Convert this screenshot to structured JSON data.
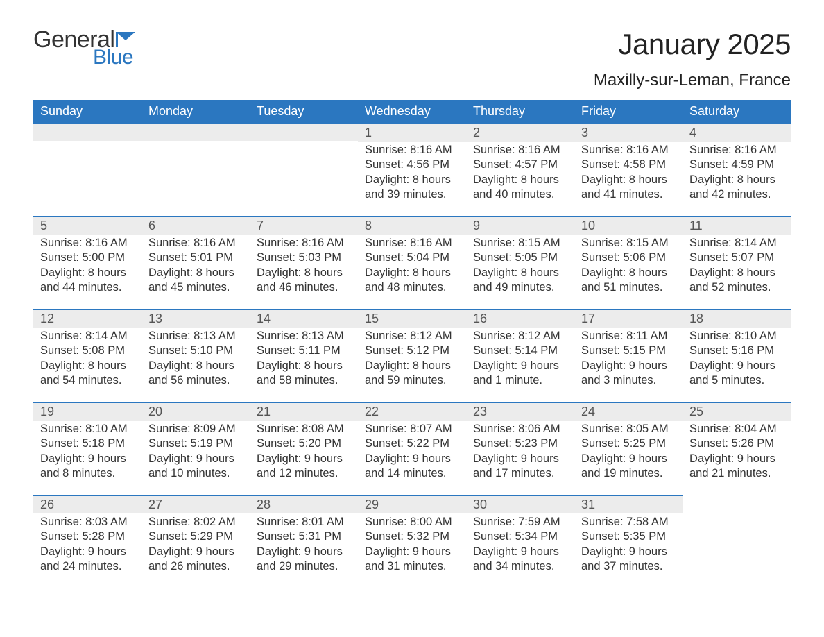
{
  "logo": {
    "text_general": "General",
    "text_blue": "Blue",
    "flag_color": "#2b77c0"
  },
  "header": {
    "month_title": "January 2025",
    "location": "Maxilly-sur-Leman, France"
  },
  "colors": {
    "header_bg": "#2b77c0",
    "header_text": "#ffffff",
    "daynum_bg": "#ececec",
    "daynum_border": "#2b77c0",
    "body_bg": "#ffffff",
    "text": "#333333"
  },
  "typography": {
    "title_fontsize": 42,
    "location_fontsize": 24,
    "header_cell_fontsize": 18,
    "daynum_fontsize": 18,
    "body_fontsize": 16.5,
    "font_family": "Arial"
  },
  "calendar": {
    "day_headers": [
      "Sunday",
      "Monday",
      "Tuesday",
      "Wednesday",
      "Thursday",
      "Friday",
      "Saturday"
    ],
    "weeks": [
      [
        null,
        null,
        null,
        {
          "num": "1",
          "sunrise": "Sunrise: 8:16 AM",
          "sunset": "Sunset: 4:56 PM",
          "daylight": "Daylight: 8 hours and 39 minutes."
        },
        {
          "num": "2",
          "sunrise": "Sunrise: 8:16 AM",
          "sunset": "Sunset: 4:57 PM",
          "daylight": "Daylight: 8 hours and 40 minutes."
        },
        {
          "num": "3",
          "sunrise": "Sunrise: 8:16 AM",
          "sunset": "Sunset: 4:58 PM",
          "daylight": "Daylight: 8 hours and 41 minutes."
        },
        {
          "num": "4",
          "sunrise": "Sunrise: 8:16 AM",
          "sunset": "Sunset: 4:59 PM",
          "daylight": "Daylight: 8 hours and 42 minutes."
        }
      ],
      [
        {
          "num": "5",
          "sunrise": "Sunrise: 8:16 AM",
          "sunset": "Sunset: 5:00 PM",
          "daylight": "Daylight: 8 hours and 44 minutes."
        },
        {
          "num": "6",
          "sunrise": "Sunrise: 8:16 AM",
          "sunset": "Sunset: 5:01 PM",
          "daylight": "Daylight: 8 hours and 45 minutes."
        },
        {
          "num": "7",
          "sunrise": "Sunrise: 8:16 AM",
          "sunset": "Sunset: 5:03 PM",
          "daylight": "Daylight: 8 hours and 46 minutes."
        },
        {
          "num": "8",
          "sunrise": "Sunrise: 8:16 AM",
          "sunset": "Sunset: 5:04 PM",
          "daylight": "Daylight: 8 hours and 48 minutes."
        },
        {
          "num": "9",
          "sunrise": "Sunrise: 8:15 AM",
          "sunset": "Sunset: 5:05 PM",
          "daylight": "Daylight: 8 hours and 49 minutes."
        },
        {
          "num": "10",
          "sunrise": "Sunrise: 8:15 AM",
          "sunset": "Sunset: 5:06 PM",
          "daylight": "Daylight: 8 hours and 51 minutes."
        },
        {
          "num": "11",
          "sunrise": "Sunrise: 8:14 AM",
          "sunset": "Sunset: 5:07 PM",
          "daylight": "Daylight: 8 hours and 52 minutes."
        }
      ],
      [
        {
          "num": "12",
          "sunrise": "Sunrise: 8:14 AM",
          "sunset": "Sunset: 5:08 PM",
          "daylight": "Daylight: 8 hours and 54 minutes."
        },
        {
          "num": "13",
          "sunrise": "Sunrise: 8:13 AM",
          "sunset": "Sunset: 5:10 PM",
          "daylight": "Daylight: 8 hours and 56 minutes."
        },
        {
          "num": "14",
          "sunrise": "Sunrise: 8:13 AM",
          "sunset": "Sunset: 5:11 PM",
          "daylight": "Daylight: 8 hours and 58 minutes."
        },
        {
          "num": "15",
          "sunrise": "Sunrise: 8:12 AM",
          "sunset": "Sunset: 5:12 PM",
          "daylight": "Daylight: 8 hours and 59 minutes."
        },
        {
          "num": "16",
          "sunrise": "Sunrise: 8:12 AM",
          "sunset": "Sunset: 5:14 PM",
          "daylight": "Daylight: 9 hours and 1 minute."
        },
        {
          "num": "17",
          "sunrise": "Sunrise: 8:11 AM",
          "sunset": "Sunset: 5:15 PM",
          "daylight": "Daylight: 9 hours and 3 minutes."
        },
        {
          "num": "18",
          "sunrise": "Sunrise: 8:10 AM",
          "sunset": "Sunset: 5:16 PM",
          "daylight": "Daylight: 9 hours and 5 minutes."
        }
      ],
      [
        {
          "num": "19",
          "sunrise": "Sunrise: 8:10 AM",
          "sunset": "Sunset: 5:18 PM",
          "daylight": "Daylight: 9 hours and 8 minutes."
        },
        {
          "num": "20",
          "sunrise": "Sunrise: 8:09 AM",
          "sunset": "Sunset: 5:19 PM",
          "daylight": "Daylight: 9 hours and 10 minutes."
        },
        {
          "num": "21",
          "sunrise": "Sunrise: 8:08 AM",
          "sunset": "Sunset: 5:20 PM",
          "daylight": "Daylight: 9 hours and 12 minutes."
        },
        {
          "num": "22",
          "sunrise": "Sunrise: 8:07 AM",
          "sunset": "Sunset: 5:22 PM",
          "daylight": "Daylight: 9 hours and 14 minutes."
        },
        {
          "num": "23",
          "sunrise": "Sunrise: 8:06 AM",
          "sunset": "Sunset: 5:23 PM",
          "daylight": "Daylight: 9 hours and 17 minutes."
        },
        {
          "num": "24",
          "sunrise": "Sunrise: 8:05 AM",
          "sunset": "Sunset: 5:25 PM",
          "daylight": "Daylight: 9 hours and 19 minutes."
        },
        {
          "num": "25",
          "sunrise": "Sunrise: 8:04 AM",
          "sunset": "Sunset: 5:26 PM",
          "daylight": "Daylight: 9 hours and 21 minutes."
        }
      ],
      [
        {
          "num": "26",
          "sunrise": "Sunrise: 8:03 AM",
          "sunset": "Sunset: 5:28 PM",
          "daylight": "Daylight: 9 hours and 24 minutes."
        },
        {
          "num": "27",
          "sunrise": "Sunrise: 8:02 AM",
          "sunset": "Sunset: 5:29 PM",
          "daylight": "Daylight: 9 hours and 26 minutes."
        },
        {
          "num": "28",
          "sunrise": "Sunrise: 8:01 AM",
          "sunset": "Sunset: 5:31 PM",
          "daylight": "Daylight: 9 hours and 29 minutes."
        },
        {
          "num": "29",
          "sunrise": "Sunrise: 8:00 AM",
          "sunset": "Sunset: 5:32 PM",
          "daylight": "Daylight: 9 hours and 31 minutes."
        },
        {
          "num": "30",
          "sunrise": "Sunrise: 7:59 AM",
          "sunset": "Sunset: 5:34 PM",
          "daylight": "Daylight: 9 hours and 34 minutes."
        },
        {
          "num": "31",
          "sunrise": "Sunrise: 7:58 AM",
          "sunset": "Sunset: 5:35 PM",
          "daylight": "Daylight: 9 hours and 37 minutes."
        },
        null
      ]
    ]
  }
}
